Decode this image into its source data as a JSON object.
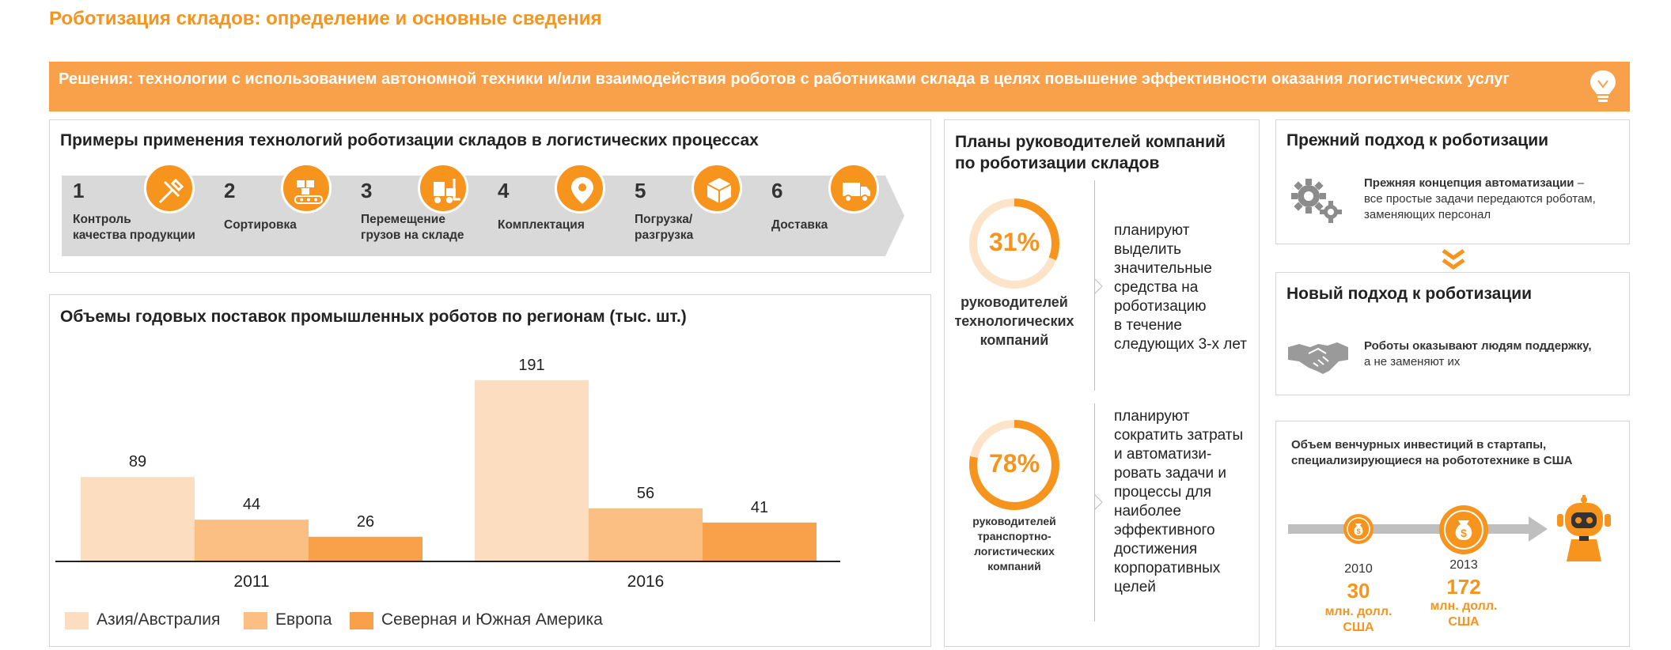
{
  "page_title": "Роботизация складов: определение и основные сведения",
  "banner": {
    "text": "Решения: технологии с использованием автономной техники и/или взаимодействия роботов с работниками склада в целях повышение эффективности оказания логистических услуг",
    "icon": "lightbulb-icon"
  },
  "process": {
    "title": "Примеры применения технологий роботизации складов в логистических процессах",
    "steps": [
      {
        "num": "1",
        "label_lines": [
          "Контроль",
          "качества продукции"
        ],
        "icon": "tools-icon"
      },
      {
        "num": "2",
        "label_lines": [
          "Сортировка"
        ],
        "icon": "conveyor-icon"
      },
      {
        "num": "3",
        "label_lines": [
          "Перемещение",
          "грузов на складе"
        ],
        "icon": "forklift-icon"
      },
      {
        "num": "4",
        "label_lines": [
          "Комплектация"
        ],
        "icon": "location-pin-icon"
      },
      {
        "num": "5",
        "label_lines": [
          "Погрузка/",
          "разгрузка"
        ],
        "icon": "package-icon"
      },
      {
        "num": "6",
        "label_lines": [
          "Доставка"
        ],
        "icon": "truck-icon"
      }
    ]
  },
  "chart_section": {
    "title": "Объемы годовых поставок промышленных роботов по регионам (тыс. шт.)"
  },
  "chart_data": {
    "type": "bar",
    "title": "Объемы годовых поставок промышленных роботов по регионам (тыс. шт.)",
    "categories": [
      "2011",
      "2016"
    ],
    "series": [
      {
        "name": "Азия/Австралия",
        "values": [
          89,
          191
        ],
        "color": "#FDDDC0"
      },
      {
        "name": "Европа",
        "values": [
          44,
          56
        ],
        "color": "#FBBF84"
      },
      {
        "name": "Северная и Южная Америка",
        "values": [
          26,
          41
        ],
        "color": "#F9A04A"
      }
    ],
    "xlabel": "",
    "ylabel": "",
    "ylim": [
      0,
      200
    ],
    "grid": false,
    "legend": "bottom"
  },
  "plans": {
    "title_lines": [
      "Планы руководителей компаний",
      "по роботизации складов"
    ],
    "items": [
      {
        "percent": "31%",
        "value": 31,
        "caption_lines": [
          "руководителей",
          "технологических",
          "компаний"
        ],
        "text_lines": [
          "планируют",
          "выделить",
          "значительные",
          "средства на",
          "роботизацию",
          "в течение",
          "следующих 3-х лет"
        ]
      },
      {
        "percent": "78%",
        "value": 78,
        "caption_lines": [
          "руководителей",
          "транспортно-",
          "логистических",
          "компаний"
        ],
        "text_lines": [
          "планируют",
          "сократить затраты",
          "и автоматизи-",
          "ровать задачи и",
          "процессы для",
          "наиболее",
          "эффективного",
          "достижения",
          "корпоративных",
          "целей"
        ]
      }
    ]
  },
  "old_approach": {
    "title": "Прежний подход к роботизации",
    "bold": "Прежняя концепция автоматизации",
    "dash": " –",
    "rest_lines": [
      "все простые задачи передаются роботам,",
      "заменяющих персонал"
    ],
    "icon": "gears-icon"
  },
  "new_approach": {
    "title": "Новый подход к роботизации",
    "line1": "Роботы оказывают людям поддержку,",
    "line2": "а не заменяют их",
    "icon": "handshake-icon"
  },
  "venture": {
    "title_lines": [
      "Объем венчурных инвестиций в стартапы,",
      "специализирующиеся на робототехнике в США"
    ],
    "points": [
      {
        "year": "2010",
        "value": "30",
        "unit_lines": [
          "млн. долл.",
          "США"
        ],
        "icon": "money-bag-icon"
      },
      {
        "year": "2013",
        "value": "172",
        "unit_lines": [
          "млн. долл.",
          "США"
        ],
        "icon": "money-bag-icon"
      }
    ],
    "robot_icon": "robot-icon"
  },
  "colors": {
    "accent": "#F7941D",
    "banner": "#F9A04A",
    "chevron": "#d9d9d9"
  }
}
